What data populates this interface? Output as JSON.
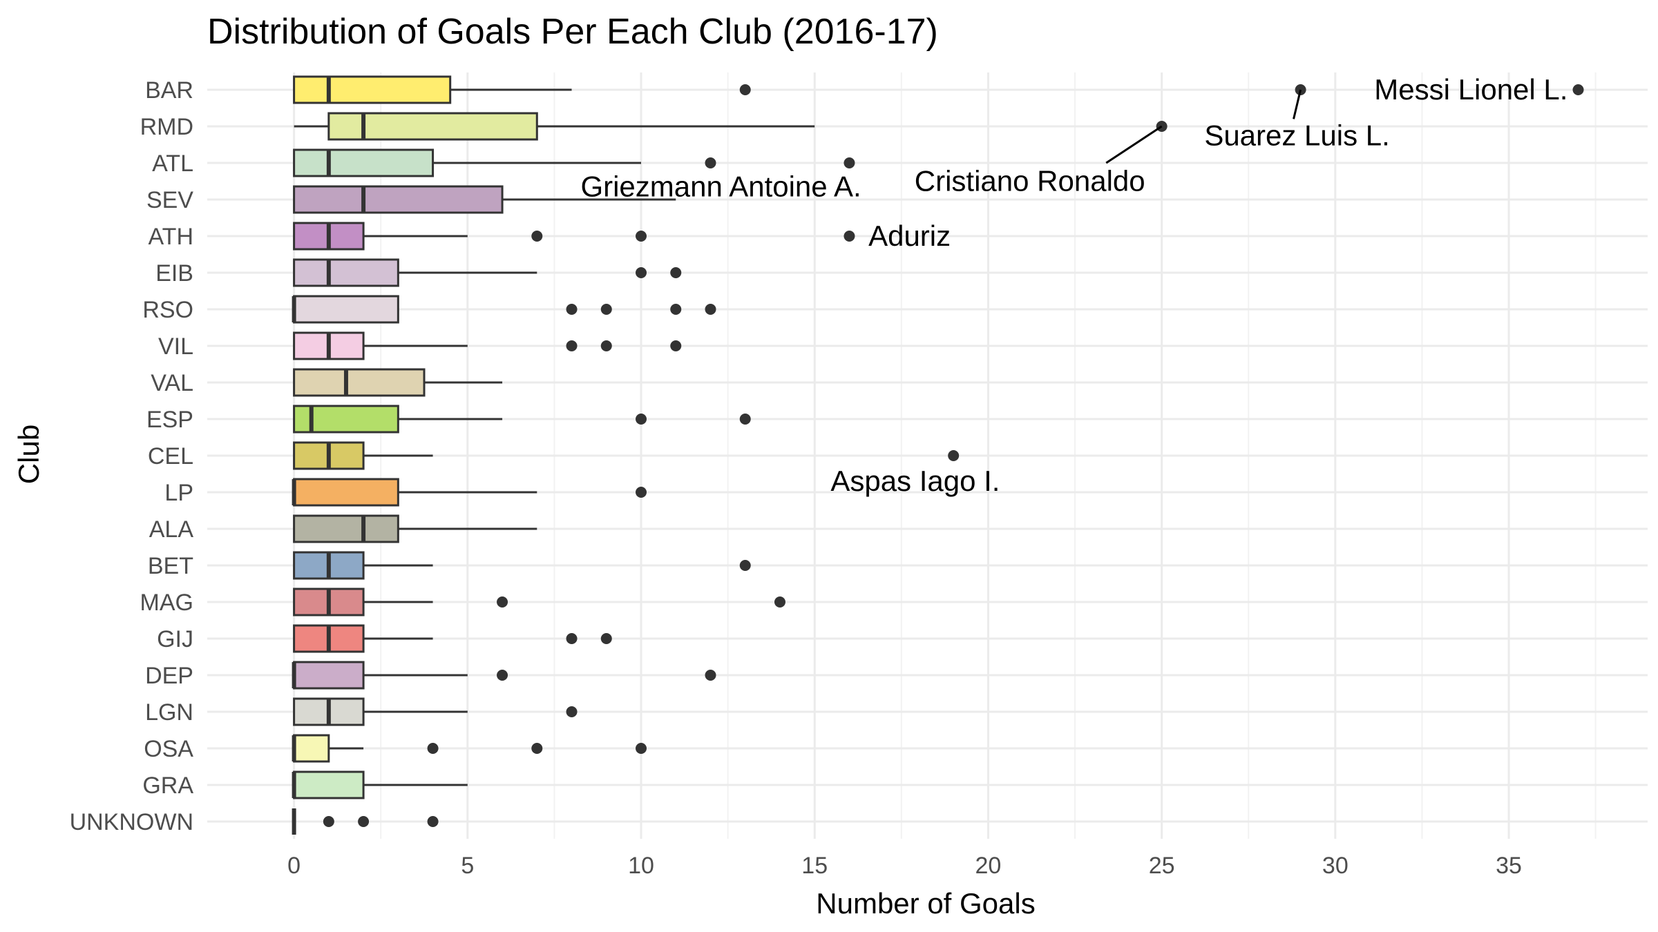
{
  "chart_data": {
    "type": "boxplot",
    "orientation": "horizontal",
    "title": "Distribution of Goals Per Each Club (2016-17)",
    "xlabel": "Number of Goals",
    "ylabel": "Club",
    "xlim": [
      -2.5,
      39
    ],
    "x_ticks": [
      0,
      5,
      10,
      15,
      20,
      25,
      30,
      35
    ],
    "x_tick_labels": [
      "0",
      "5",
      "10",
      "15",
      "20",
      "25",
      "30",
      "35"
    ],
    "grid": true,
    "legend": "none",
    "categories": [
      "BAR",
      "RMD",
      "ATL",
      "SEV",
      "ATH",
      "EIB",
      "RSO",
      "VIL",
      "VAL",
      "ESP",
      "CEL",
      "LP",
      "ALA",
      "BET",
      "MAG",
      "GIJ",
      "DEP",
      "LGN",
      "OSA",
      "GRA",
      "UNKNOWN"
    ],
    "boxes": [
      {
        "club": "BAR",
        "min": 0,
        "q1": 0,
        "median": 1,
        "q3": 4.5,
        "max": 8,
        "outliers": [
          13,
          29,
          37
        ],
        "color": "#FFED6F"
      },
      {
        "club": "RMD",
        "min": 0,
        "q1": 1,
        "median": 2,
        "q3": 7,
        "max": 15,
        "outliers": [
          25
        ],
        "color": "#E2EBA0"
      },
      {
        "club": "ATL",
        "min": 0,
        "q1": 0,
        "median": 1,
        "q3": 4,
        "max": 10,
        "outliers": [
          12,
          16
        ],
        "color": "#C7E1C9"
      },
      {
        "club": "SEV",
        "min": 0,
        "q1": 0,
        "median": 2,
        "q3": 6,
        "max": 11,
        "outliers": [],
        "color": "#BFA3C0"
      },
      {
        "club": "ATH",
        "min": 0,
        "q1": 0,
        "median": 1,
        "q3": 2,
        "max": 5,
        "outliers": [
          7,
          10,
          16
        ],
        "color": "#C28FC5"
      },
      {
        "club": "EIB",
        "min": 0,
        "q1": 0,
        "median": 1,
        "q3": 3,
        "max": 7,
        "outliers": [
          10,
          11
        ],
        "color": "#D3C1D4"
      },
      {
        "club": "RSO",
        "min": 0,
        "q1": 0,
        "median": 0,
        "q3": 3,
        "max": 3,
        "outliers": [
          8,
          9,
          11,
          12
        ],
        "color": "#E3D7DE"
      },
      {
        "club": "VIL",
        "min": 0,
        "q1": 0,
        "median": 1,
        "q3": 2,
        "max": 5,
        "outliers": [
          8,
          9,
          11
        ],
        "color": "#F4CDE3"
      },
      {
        "club": "VAL",
        "min": 0,
        "q1": 0,
        "median": 1.5,
        "q3": 3.75,
        "max": 6,
        "outliers": [],
        "color": "#DFD3B1"
      },
      {
        "club": "ESP",
        "min": 0,
        "q1": 0,
        "median": 0.5,
        "q3": 3,
        "max": 6,
        "outliers": [
          10,
          13
        ],
        "color": "#B3DE69"
      },
      {
        "club": "CEL",
        "min": 0,
        "q1": 0,
        "median": 1,
        "q3": 2,
        "max": 4,
        "outliers": [
          19
        ],
        "color": "#D8C965"
      },
      {
        "club": "LP",
        "min": 0,
        "q1": 0,
        "median": 0,
        "q3": 3,
        "max": 7,
        "outliers": [
          10
        ],
        "color": "#F4B062"
      },
      {
        "club": "ALA",
        "min": 0,
        "q1": 0,
        "median": 2,
        "q3": 3,
        "max": 7,
        "outliers": [],
        "color": "#B3B3A3"
      },
      {
        "club": "BET",
        "min": 0,
        "q1": 0,
        "median": 1,
        "q3": 2,
        "max": 4,
        "outliers": [
          13
        ],
        "color": "#8DA8C6"
      },
      {
        "club": "MAG",
        "min": 0,
        "q1": 0,
        "median": 1,
        "q3": 2,
        "max": 4,
        "outliers": [
          6,
          14
        ],
        "color": "#D98A8C"
      },
      {
        "club": "GIJ",
        "min": 0,
        "q1": 0,
        "median": 1,
        "q3": 2,
        "max": 4,
        "outliers": [
          8,
          9
        ],
        "color": "#EE8680"
      },
      {
        "club": "DEP",
        "min": 0,
        "q1": 0,
        "median": 0,
        "q3": 2,
        "max": 5,
        "outliers": [
          6,
          12
        ],
        "color": "#CBADC9"
      },
      {
        "club": "LGN",
        "min": 0,
        "q1": 0,
        "median": 1,
        "q3": 2,
        "max": 5,
        "outliers": [
          8
        ],
        "color": "#D9D9D2"
      },
      {
        "club": "OSA",
        "min": 0,
        "q1": 0,
        "median": 0,
        "q3": 1,
        "max": 2,
        "outliers": [
          4,
          7,
          10
        ],
        "color": "#F7F7B5"
      },
      {
        "club": "GRA",
        "min": 0,
        "q1": 0,
        "median": 0,
        "q3": 2,
        "max": 5,
        "outliers": [],
        "color": "#CDEBC5"
      },
      {
        "club": "UNKNOWN",
        "min": 0,
        "q1": 0,
        "median": 0,
        "q3": 0,
        "max": 0,
        "outliers": [
          1,
          2,
          4
        ],
        "color": "#D9D9D9"
      }
    ],
    "annotations": [
      {
        "text": "Messi Lionel L.",
        "club": "BAR",
        "value": 37
      },
      {
        "text": "Suarez Luis L.",
        "club": "BAR",
        "value": 29
      },
      {
        "text": "Cristiano Ronaldo",
        "club": "RMD",
        "value": 25
      },
      {
        "text": "Griezmann Antoine A.",
        "club": "SEV",
        "value": 11
      },
      {
        "text": "Aduriz",
        "club": "ATH",
        "value": 16
      },
      {
        "text": "Aspas Iago I.",
        "club": "CEL",
        "value": 19
      }
    ]
  }
}
